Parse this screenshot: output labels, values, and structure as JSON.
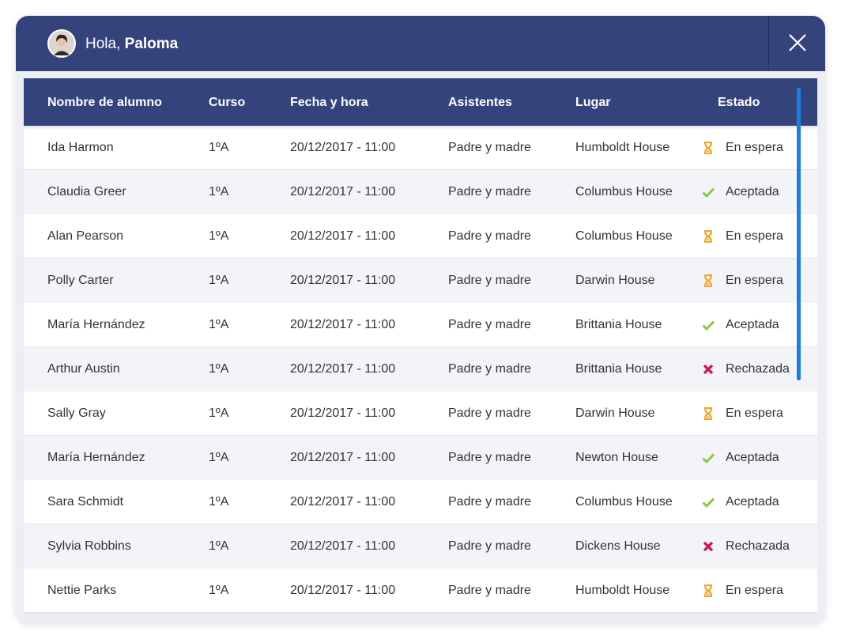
{
  "header": {
    "greeting": "Hola,",
    "user_name": "Paloma"
  },
  "table": {
    "columns": [
      "Nombre de alumno",
      "Curso",
      "Fecha y hora",
      "Asistentes",
      "Lugar",
      "Estado"
    ],
    "rows": [
      [
        "Ida Harmon",
        "1ºA",
        "20/12/2017 - 11:00",
        "Padre y madre",
        "Humboldt House",
        "En espera"
      ],
      [
        "Claudia Greer",
        "1ºA",
        "20/12/2017 - 11:00",
        "Padre y madre",
        "Columbus House",
        "Aceptada"
      ],
      [
        "Alan Pearson",
        "1ºA",
        "20/12/2017 - 11:00",
        "Padre y madre",
        "Columbus House",
        "En espera"
      ],
      [
        "Polly Carter",
        "1ºA",
        "20/12/2017 - 11:00",
        "Padre y madre",
        "Darwin House",
        "En espera"
      ],
      [
        "María Hernández",
        "1ºA",
        "20/12/2017 - 11:00",
        "Padre y madre",
        "Brittania House",
        "Aceptada"
      ],
      [
        "Arthur Austin",
        "1ºA",
        "20/12/2017 - 11:00",
        "Padre y madre",
        "Brittania House",
        "Rechazada"
      ],
      [
        "Sally Gray",
        "1ºA",
        "20/12/2017 - 11:00",
        "Padre y madre",
        "Darwin House",
        "En espera"
      ],
      [
        "María Hernández",
        "1ºA",
        "20/12/2017 - 11:00",
        "Padre y madre",
        "Newton House",
        "Aceptada"
      ],
      [
        "Sara Schmidt",
        "1ºA",
        "20/12/2017 - 11:00",
        "Padre y madre",
        "Columbus House",
        "Aceptada"
      ],
      [
        "Sylvia Robbins",
        "1ºA",
        "20/12/2017 - 11:00",
        "Padre y madre",
        "Dickens House",
        "Rechazada"
      ],
      [
        "Nettie Parks",
        "1ºA",
        "20/12/2017 - 11:00",
        "Padre y madre",
        "Humboldt House",
        "En espera"
      ]
    ]
  }
}
